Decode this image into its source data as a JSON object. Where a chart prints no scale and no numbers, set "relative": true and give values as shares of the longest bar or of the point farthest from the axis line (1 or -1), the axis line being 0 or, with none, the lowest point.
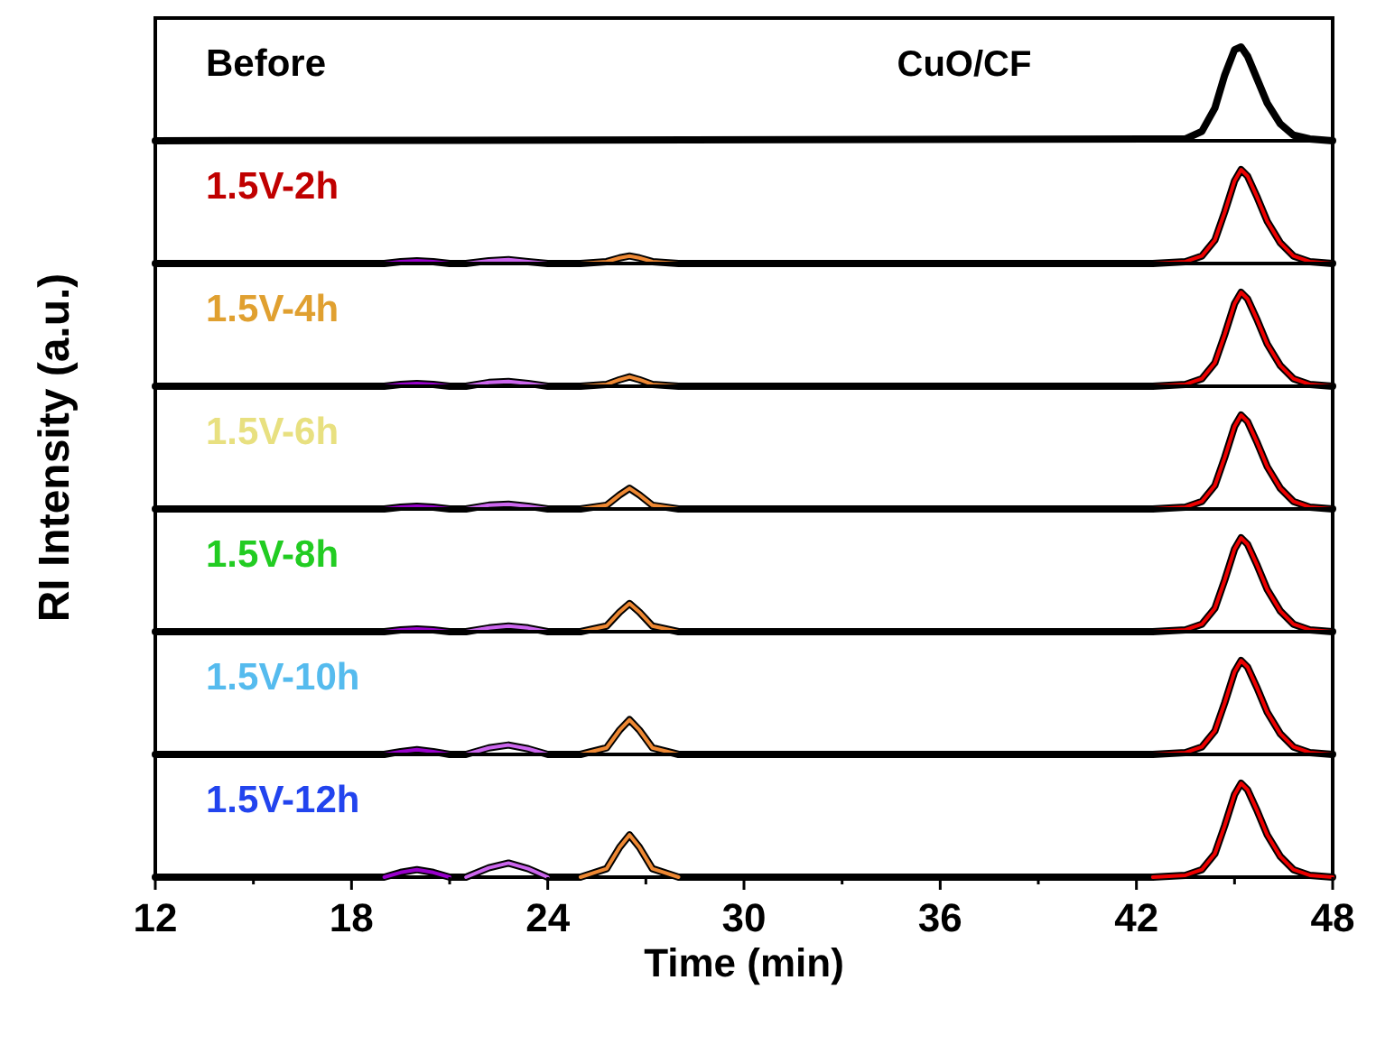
{
  "chart_data": [
    {
      "type": "line",
      "relative": true,
      "title": "Before",
      "ylabel": "RI Intensity (a.u.)",
      "annotations": [
        "CuO/CF"
      ],
      "xlim": [
        12,
        48
      ],
      "tick_labels": false,
      "series": [
        {
          "color": "#000000",
          "x": [
            12,
            43.5,
            44,
            44.4,
            44.7,
            45,
            45.2,
            45.4,
            45.7,
            46,
            46.4,
            46.8,
            47.3,
            48
          ],
          "values": [
            0,
            0.02,
            0.1,
            0.35,
            0.7,
            0.97,
            1,
            0.9,
            0.65,
            0.4,
            0.18,
            0.06,
            0.02,
            0
          ]
        }
      ]
    },
    {
      "type": "line",
      "relative": true,
      "title": "1.5V-2h",
      "xlim": [
        12,
        48
      ],
      "tick_labels": false,
      "series": [
        {
          "color": "#000000",
          "x": [
            12,
            19,
            19.5,
            20,
            20.5,
            21,
            21.5,
            22.2,
            22.8,
            23.4,
            24,
            25,
            25.8,
            26.2,
            26.5,
            26.8,
            27.2,
            28,
            42.5,
            43.5,
            44,
            44.4,
            44.7,
            45,
            45.2,
            45.4,
            45.7,
            46,
            46.4,
            46.8,
            47.3,
            48
          ],
          "values": [
            0,
            0,
            0.02,
            0.03,
            0.02,
            0,
            0,
            0.03,
            0.04,
            0.02,
            0,
            0,
            0.02,
            0.06,
            0.08,
            0.06,
            0.02,
            0,
            0,
            0.02,
            0.08,
            0.25,
            0.55,
            0.88,
            1,
            0.93,
            0.7,
            0.45,
            0.22,
            0.08,
            0.02,
            0
          ]
        },
        {
          "color": "#9900cc",
          "x": [
            19,
            19.5,
            20,
            20.5,
            21
          ],
          "values": [
            0,
            0.02,
            0.03,
            0.02,
            0
          ]
        },
        {
          "color": "#cc66ee",
          "x": [
            21.5,
            22.2,
            22.8,
            23.4,
            24
          ],
          "values": [
            0,
            0.03,
            0.04,
            0.02,
            0
          ]
        },
        {
          "color": "#ee8833",
          "x": [
            25,
            25.8,
            26.2,
            26.5,
            26.8,
            27.2,
            28
          ],
          "values": [
            0,
            0.02,
            0.06,
            0.08,
            0.06,
            0.02,
            0
          ]
        },
        {
          "color": "#ee0000",
          "x": [
            42.5,
            43.5,
            44,
            44.4,
            44.7,
            45,
            45.2,
            45.4,
            45.7,
            46,
            46.4,
            46.8,
            47.3,
            48
          ],
          "values": [
            0,
            0.02,
            0.08,
            0.25,
            0.55,
            0.88,
            1,
            0.93,
            0.7,
            0.45,
            0.22,
            0.08,
            0.02,
            0
          ]
        }
      ]
    },
    {
      "type": "line",
      "relative": true,
      "title": "1.5V-4h",
      "xlim": [
        12,
        48
      ],
      "tick_labels": false,
      "series": [
        {
          "color": "#000000",
          "x": [
            12,
            19,
            19.5,
            20,
            20.5,
            21,
            21.5,
            22.2,
            22.8,
            23.4,
            24,
            25,
            25.8,
            26.2,
            26.5,
            26.8,
            27.2,
            28,
            42.5,
            43.5,
            44,
            44.4,
            44.7,
            45,
            45.2,
            45.4,
            45.7,
            46,
            46.4,
            46.8,
            47.3,
            48
          ],
          "values": [
            0,
            0,
            0.02,
            0.03,
            0.02,
            0,
            0,
            0.04,
            0.05,
            0.03,
            0,
            0,
            0.02,
            0.07,
            0.1,
            0.07,
            0.02,
            0,
            0,
            0.02,
            0.08,
            0.25,
            0.55,
            0.88,
            1,
            0.93,
            0.7,
            0.45,
            0.22,
            0.08,
            0.02,
            0
          ]
        },
        {
          "color": "#9900cc",
          "x": [
            19,
            19.5,
            20,
            20.5,
            21
          ],
          "values": [
            0,
            0.02,
            0.03,
            0.02,
            0
          ]
        },
        {
          "color": "#cc66ee",
          "x": [
            21.5,
            22.2,
            22.8,
            23.4,
            24
          ],
          "values": [
            0,
            0.04,
            0.05,
            0.03,
            0
          ]
        },
        {
          "color": "#ee8833",
          "x": [
            25,
            25.8,
            26.2,
            26.5,
            26.8,
            27.2,
            28
          ],
          "values": [
            0,
            0.02,
            0.07,
            0.1,
            0.07,
            0.02,
            0
          ]
        },
        {
          "color": "#ee0000",
          "x": [
            42.5,
            43.5,
            44,
            44.4,
            44.7,
            45,
            45.2,
            45.4,
            45.7,
            46,
            46.4,
            46.8,
            47.3,
            48
          ],
          "values": [
            0,
            0.02,
            0.08,
            0.25,
            0.55,
            0.88,
            1,
            0.93,
            0.7,
            0.45,
            0.22,
            0.08,
            0.02,
            0
          ]
        }
      ]
    },
    {
      "type": "line",
      "relative": true,
      "title": "1.5V-6h",
      "xlim": [
        12,
        48
      ],
      "tick_labels": false,
      "series": [
        {
          "color": "#000000",
          "x": [
            12,
            19,
            19.5,
            20,
            20.5,
            21,
            21.5,
            22.2,
            22.8,
            23.4,
            24,
            25,
            25.8,
            26.2,
            26.5,
            26.8,
            27.2,
            28,
            42.5,
            43.5,
            44,
            44.4,
            44.7,
            45,
            45.2,
            45.4,
            45.7,
            46,
            46.4,
            46.8,
            47.3,
            48
          ],
          "values": [
            0,
            0,
            0.02,
            0.03,
            0.02,
            0,
            0,
            0.04,
            0.05,
            0.03,
            0,
            0,
            0.04,
            0.15,
            0.22,
            0.15,
            0.04,
            0,
            0,
            0.02,
            0.08,
            0.25,
            0.55,
            0.88,
            1,
            0.93,
            0.7,
            0.45,
            0.22,
            0.08,
            0.02,
            0
          ]
        },
        {
          "color": "#9900cc",
          "x": [
            19,
            19.5,
            20,
            20.5,
            21
          ],
          "values": [
            0,
            0.02,
            0.03,
            0.02,
            0
          ]
        },
        {
          "color": "#cc66ee",
          "x": [
            21.5,
            22.2,
            22.8,
            23.4,
            24
          ],
          "values": [
            0,
            0.04,
            0.05,
            0.03,
            0
          ]
        },
        {
          "color": "#ee8833",
          "x": [
            25,
            25.8,
            26.2,
            26.5,
            26.8,
            27.2,
            28
          ],
          "values": [
            0,
            0.04,
            0.15,
            0.22,
            0.15,
            0.04,
            0
          ]
        },
        {
          "color": "#ee0000",
          "x": [
            42.5,
            43.5,
            44,
            44.4,
            44.7,
            45,
            45.2,
            45.4,
            45.7,
            46,
            46.4,
            46.8,
            47.3,
            48
          ],
          "values": [
            0,
            0.02,
            0.08,
            0.25,
            0.55,
            0.88,
            1,
            0.93,
            0.7,
            0.45,
            0.22,
            0.08,
            0.02,
            0
          ]
        }
      ]
    },
    {
      "type": "line",
      "relative": true,
      "title": "1.5V-8h",
      "xlim": [
        12,
        48
      ],
      "tick_labels": false,
      "series": [
        {
          "color": "#000000",
          "x": [
            12,
            19,
            19.5,
            20,
            20.5,
            21,
            21.5,
            22.2,
            22.8,
            23.4,
            24,
            25,
            25.8,
            26.2,
            26.5,
            26.8,
            27.2,
            28,
            42.5,
            43.5,
            44,
            44.4,
            44.7,
            45,
            45.2,
            45.4,
            45.7,
            46,
            46.4,
            46.8,
            47.3,
            48
          ],
          "values": [
            0,
            0,
            0.02,
            0.03,
            0.02,
            0,
            0,
            0.04,
            0.06,
            0.04,
            0,
            0,
            0.06,
            0.21,
            0.3,
            0.21,
            0.06,
            0,
            0,
            0.02,
            0.08,
            0.25,
            0.55,
            0.88,
            1,
            0.93,
            0.7,
            0.45,
            0.22,
            0.08,
            0.02,
            0
          ]
        },
        {
          "color": "#9900cc",
          "x": [
            19,
            19.5,
            20,
            20.5,
            21
          ],
          "values": [
            0,
            0.02,
            0.03,
            0.02,
            0
          ]
        },
        {
          "color": "#cc66ee",
          "x": [
            21.5,
            22.2,
            22.8,
            23.4,
            24
          ],
          "values": [
            0,
            0.04,
            0.06,
            0.04,
            0
          ]
        },
        {
          "color": "#ee8833",
          "x": [
            25,
            25.8,
            26.2,
            26.5,
            26.8,
            27.2,
            28
          ],
          "values": [
            0,
            0.06,
            0.21,
            0.3,
            0.21,
            0.06,
            0
          ]
        },
        {
          "color": "#ee0000",
          "x": [
            42.5,
            43.5,
            44,
            44.4,
            44.7,
            45,
            45.2,
            45.4,
            45.7,
            46,
            46.4,
            46.8,
            47.3,
            48
          ],
          "values": [
            0,
            0.02,
            0.08,
            0.25,
            0.55,
            0.88,
            1,
            0.93,
            0.7,
            0.45,
            0.22,
            0.08,
            0.02,
            0
          ]
        }
      ]
    },
    {
      "type": "line",
      "relative": true,
      "title": "1.5V-10h",
      "xlim": [
        12,
        48
      ],
      "tick_labels": false,
      "series": [
        {
          "color": "#000000",
          "x": [
            12,
            19,
            19.5,
            20,
            20.5,
            21,
            21.5,
            22.2,
            22.8,
            23.4,
            24,
            25,
            25.8,
            26.2,
            26.5,
            26.8,
            27.2,
            28,
            42.5,
            43.5,
            44,
            44.4,
            44.7,
            45,
            45.2,
            45.4,
            45.7,
            46,
            46.4,
            46.8,
            47.3,
            48
          ],
          "values": [
            0,
            0,
            0.03,
            0.05,
            0.03,
            0,
            0,
            0.07,
            0.1,
            0.06,
            0,
            0,
            0.07,
            0.26,
            0.37,
            0.26,
            0.07,
            0,
            0,
            0.02,
            0.08,
            0.25,
            0.55,
            0.88,
            1,
            0.93,
            0.7,
            0.45,
            0.22,
            0.08,
            0.02,
            0
          ]
        },
        {
          "color": "#9900cc",
          "x": [
            19,
            19.5,
            20,
            20.5,
            21
          ],
          "values": [
            0,
            0.03,
            0.05,
            0.03,
            0
          ]
        },
        {
          "color": "#cc66ee",
          "x": [
            21.5,
            22.2,
            22.8,
            23.4,
            24
          ],
          "values": [
            0,
            0.07,
            0.1,
            0.06,
            0
          ]
        },
        {
          "color": "#ee8833",
          "x": [
            25,
            25.8,
            26.2,
            26.5,
            26.8,
            27.2,
            28
          ],
          "values": [
            0,
            0.07,
            0.26,
            0.37,
            0.26,
            0.07,
            0
          ]
        },
        {
          "color": "#ee0000",
          "x": [
            42.5,
            43.5,
            44,
            44.4,
            44.7,
            45,
            45.2,
            45.4,
            45.7,
            46,
            46.4,
            46.8,
            47.3,
            48
          ],
          "values": [
            0,
            0.02,
            0.08,
            0.25,
            0.55,
            0.88,
            1,
            0.93,
            0.7,
            0.45,
            0.22,
            0.08,
            0.02,
            0
          ]
        }
      ]
    },
    {
      "type": "line",
      "relative": true,
      "title": "1.5V-12h",
      "xlabel": "Time (min)",
      "xlim": [
        12,
        48
      ],
      "xticks": [
        12,
        {
          "value": 15,
          "label": null
        },
        18,
        {
          "value": 21,
          "label": null
        },
        24,
        {
          "value": 27,
          "label": null
        },
        30,
        {
          "value": 33,
          "label": null
        },
        36,
        {
          "value": 39,
          "label": null
        },
        42,
        {
          "value": 45,
          "label": null
        },
        48
      ],
      "tick_labels": "x",
      "series": [
        {
          "color": "#000000",
          "x": [
            12,
            19,
            19.5,
            20,
            20.5,
            21,
            21.5,
            22.2,
            22.8,
            23.4,
            24,
            25,
            25.8,
            26.2,
            26.5,
            26.8,
            27.2,
            28,
            42.5,
            43.5,
            44,
            44.4,
            44.7,
            45,
            45.2,
            45.4,
            45.7,
            46,
            46.4,
            46.8,
            47.3,
            48
          ],
          "values": [
            0,
            0,
            0.05,
            0.08,
            0.05,
            0,
            0,
            0.1,
            0.15,
            0.09,
            0,
            0,
            0.09,
            0.32,
            0.45,
            0.32,
            0.09,
            0,
            0,
            0.02,
            0.08,
            0.25,
            0.55,
            0.88,
            1,
            0.93,
            0.7,
            0.45,
            0.22,
            0.08,
            0.02,
            0
          ]
        },
        {
          "color": "#9900cc",
          "x": [
            19,
            19.5,
            20,
            20.5,
            21
          ],
          "values": [
            0,
            0.05,
            0.08,
            0.05,
            0
          ]
        },
        {
          "color": "#cc66ee",
          "x": [
            21.5,
            22.2,
            22.8,
            23.4,
            24
          ],
          "values": [
            0,
            0.1,
            0.15,
            0.09,
            0
          ]
        },
        {
          "color": "#ee8833",
          "x": [
            25,
            25.8,
            26.2,
            26.5,
            26.8,
            27.2,
            28
          ],
          "values": [
            0,
            0.09,
            0.32,
            0.45,
            0.32,
            0.09,
            0
          ]
        },
        {
          "color": "#ee0000",
          "x": [
            42.5,
            43.5,
            44,
            44.4,
            44.7,
            45,
            45.2,
            45.4,
            45.7,
            46,
            46.4,
            46.8,
            47.3,
            48
          ],
          "values": [
            0,
            0.02,
            0.08,
            0.25,
            0.55,
            0.88,
            1,
            0.93,
            0.7,
            0.45,
            0.22,
            0.08,
            0.02,
            0
          ]
        }
      ]
    }
  ]
}
